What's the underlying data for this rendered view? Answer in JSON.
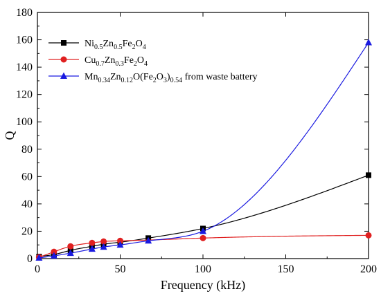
{
  "chart_data": {
    "type": "line",
    "title": "",
    "xlabel": "Frequency (kHz)",
    "ylabel": "Q",
    "xlim": [
      0,
      200
    ],
    "ylim": [
      0,
      180
    ],
    "xticks": [
      0,
      50,
      100,
      150,
      200
    ],
    "yticks": [
      0,
      20,
      40,
      60,
      80,
      100,
      120,
      140,
      160,
      180
    ],
    "legend_position": "top-left",
    "series": [
      {
        "legend": [
          {
            "t": "Ni"
          },
          {
            "t": "0.5",
            "sub": true
          },
          {
            "t": "Zn"
          },
          {
            "t": "0.5",
            "sub": true
          },
          {
            "t": "Fe"
          },
          {
            "t": "2",
            "sub": true
          },
          {
            "t": "O"
          },
          {
            "t": "4",
            "sub": true
          }
        ],
        "color": "#000000",
        "marker": "square",
        "x": [
          1,
          10,
          20,
          33,
          40,
          50,
          67,
          100,
          200
        ],
        "y": [
          1.5,
          3,
          6,
          9,
          10.5,
          12,
          15,
          22,
          61
        ]
      },
      {
        "legend": [
          {
            "t": "Cu"
          },
          {
            "t": "0.7",
            "sub": true
          },
          {
            "t": "Zn"
          },
          {
            "t": "0.3",
            "sub": true
          },
          {
            "t": "Fe"
          },
          {
            "t": "2",
            "sub": true
          },
          {
            "t": "O"
          },
          {
            "t": "4",
            "sub": true
          }
        ],
        "color": "#e02020",
        "marker": "circle",
        "x": [
          1,
          10,
          20,
          33,
          40,
          50,
          100,
          200
        ],
        "y": [
          1,
          5,
          9,
          11.5,
          12.5,
          13,
          15,
          17
        ]
      },
      {
        "legend": [
          {
            "t": "Mn"
          },
          {
            "t": "0.34",
            "sub": true
          },
          {
            "t": "Zn"
          },
          {
            "t": "0.12",
            "sub": true
          },
          {
            "t": "O(Fe"
          },
          {
            "t": "2",
            "sub": true
          },
          {
            "t": "O"
          },
          {
            "t": "3",
            "sub": true
          },
          {
            "t": ")"
          },
          {
            "t": "0.54",
            "sub": true
          },
          {
            "t": " from waste battery"
          }
        ],
        "color": "#1a1ae0",
        "marker": "triangle",
        "x": [
          1,
          10,
          20,
          33,
          40,
          50,
          67,
          100,
          200
        ],
        "y": [
          0.5,
          2,
          4,
          7,
          8.5,
          10,
          13,
          20,
          158
        ]
      }
    ]
  }
}
